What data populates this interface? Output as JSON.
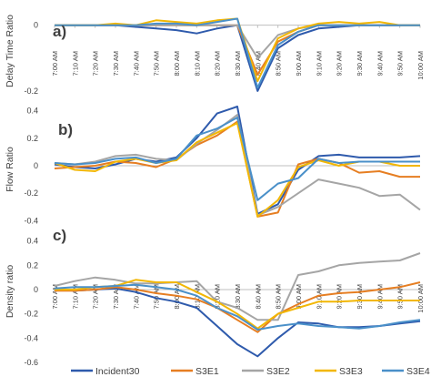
{
  "chart_data": [
    {
      "type": "line",
      "panel_label": "a)",
      "ylabel": "Delay Time Ratio",
      "ylim": [
        -0.25,
        0.06
      ],
      "yticks": [
        {
          "v": 0,
          "t": "0"
        },
        {
          "v": -0.2,
          "t": "-0.2"
        }
      ],
      "x": [
        "7:00 AM",
        "7:10 AM",
        "7:20 AM",
        "7:30 AM",
        "7:40 AM",
        "7:50 AM",
        "8:00 AM",
        "8:10 AM",
        "8:20 AM",
        "8:30 AM",
        "8:40 AM",
        "8:50 AM",
        "9:00 AM",
        "9:10 AM",
        "9:20 AM",
        "9:30 AM",
        "9:40 AM",
        "9:50 AM",
        "10:00 AM"
      ],
      "xtick_labels": [
        "7:00 AM",
        "7:10 AM",
        "7:20 AM",
        "7:30 AM",
        "7:40 AM",
        "7:50 AM",
        "8:00 AM",
        "8:10 AM",
        "8:20 AM",
        "8:30 AM",
        "8:40 AM",
        "8:50 AM",
        "9:00 AM",
        "9:10 AM",
        "9:20 AM",
        "9:30 AM",
        "9:40 AM",
        "9:50 AM",
        "10:00 AM"
      ],
      "series": [
        {
          "name": "Incident30",
          "values": [
            0,
            0,
            0,
            0,
            -0.005,
            -0.01,
            -0.015,
            -0.025,
            -0.01,
            0,
            -0.2,
            -0.07,
            -0.03,
            -0.01,
            -0.005,
            0,
            0,
            0,
            0
          ]
        },
        {
          "name": "S3E1",
          "values": [
            0,
            0,
            0,
            0,
            0,
            0,
            0,
            0,
            0,
            0,
            -0.15,
            -0.05,
            -0.02,
            0,
            0,
            0,
            0,
            0,
            0
          ]
        },
        {
          "name": "S3E2",
          "values": [
            0,
            0,
            0,
            0,
            0,
            0,
            0,
            0,
            0,
            0,
            -0.1,
            -0.03,
            -0.01,
            0,
            0,
            0,
            0,
            0,
            0
          ]
        },
        {
          "name": "S3E3",
          "values": [
            0,
            0,
            0,
            0.005,
            0,
            0.015,
            0.01,
            0.005,
            0.015,
            0.02,
            -0.17,
            -0.04,
            -0.01,
            0.005,
            0.01,
            0.005,
            0.01,
            0,
            0
          ]
        },
        {
          "name": "S3E4",
          "values": [
            0,
            0,
            0,
            0,
            0,
            0.005,
            0.005,
            0,
            0.01,
            0.02,
            -0.19,
            -0.06,
            -0.02,
            0,
            0,
            0,
            0,
            0,
            0
          ]
        }
      ]
    },
    {
      "type": "line",
      "panel_label": "b)",
      "ylabel": "Flow Ratio",
      "ylim": [
        -0.45,
        0.45
      ],
      "yticks": [
        {
          "v": 0.4,
          "t": "0.4"
        },
        {
          "v": 0.2,
          "t": "0.2"
        },
        {
          "v": 0,
          "t": "0"
        },
        {
          "v": -0.2,
          "t": "-0.2"
        },
        {
          "v": -0.4,
          "t": "-0.4"
        }
      ],
      "x": [
        "7:00 AM",
        "7:10 AM",
        "7:20 AM",
        "7:30 AM",
        "7:40 AM",
        "7:50 AM",
        "8:00 AM",
        "8:10 AM",
        "8:20 AM",
        "8:30 AM",
        "8:40 AM",
        "8:50 AM",
        "9:00 AM",
        "9:10 AM",
        "9:20 AM",
        "9:30 AM",
        "9:40 AM",
        "9:50 AM",
        "10:00 AM"
      ],
      "series": [
        {
          "name": "Incident30",
          "values": [
            0.01,
            -0.01,
            -0.02,
            0.01,
            0.05,
            0.03,
            0.06,
            0.2,
            0.38,
            0.43,
            -0.35,
            -0.28,
            -0.03,
            0.07,
            0.08,
            0.06,
            0.06,
            0.06,
            0.07
          ]
        },
        {
          "name": "S3E1",
          "values": [
            -0.02,
            -0.01,
            0.0,
            0.03,
            0.02,
            -0.01,
            0.05,
            0.15,
            0.22,
            0.32,
            -0.37,
            -0.34,
            0.01,
            0.05,
            0.02,
            -0.05,
            -0.04,
            -0.08,
            -0.08
          ]
        },
        {
          "name": "S3E2",
          "values": [
            0.02,
            0.01,
            0.03,
            0.07,
            0.08,
            0.05,
            0.04,
            0.16,
            0.26,
            0.37,
            -0.36,
            -0.3,
            -0.2,
            -0.1,
            -0.13,
            -0.16,
            -0.22,
            -0.21,
            -0.32
          ]
        },
        {
          "name": "S3E3",
          "values": [
            0.02,
            -0.03,
            -0.04,
            0.03,
            0.05,
            0.02,
            0.04,
            0.17,
            0.24,
            0.31,
            -0.37,
            -0.25,
            -0.01,
            0.04,
            0.0,
            0.03,
            0.03,
            0.0,
            0.0
          ]
        },
        {
          "name": "S3E4",
          "values": [
            0.02,
            0.01,
            0.02,
            0.05,
            0.06,
            0.02,
            0.05,
            0.22,
            0.27,
            0.35,
            -0.25,
            -0.13,
            -0.09,
            0.05,
            0.02,
            0.03,
            0.03,
            0.03,
            0.03
          ]
        }
      ]
    },
    {
      "type": "line",
      "panel_label": "c)",
      "ylabel": "Density ratio",
      "ylim": [
        -0.6,
        0.45
      ],
      "yticks": [
        {
          "v": 0.4,
          "t": "0.4"
        },
        {
          "v": 0.2,
          "t": "0.2"
        },
        {
          "v": 0,
          "t": "0"
        },
        {
          "v": -0.2,
          "t": "-0.2"
        },
        {
          "v": -0.4,
          "t": "-0.4"
        },
        {
          "v": -0.6,
          "t": "-0.6"
        }
      ],
      "x": [
        "7:00 AM",
        "7:10 AM",
        "7:20 AM",
        "7:30 AM",
        "7:40 AM",
        "7:50 AM",
        "8:00 AM",
        "8:10 AM",
        "8:20 AM",
        "8:30 AM",
        "8:40 AM",
        "8:50 AM",
        "9:00 AM",
        "9:10 AM",
        "9:20 AM",
        "9:30 AM",
        "9:40 AM",
        "9:50 AM",
        "10:00 AM"
      ],
      "xtick_labels": [
        "7:00 AM",
        "7:10 AM",
        "7:20 AM",
        "7:30 AM",
        "7:40 AM",
        "7:50 AM",
        "8:00 AM",
        "8:10 AM",
        "8:20 AM",
        "8:30 AM",
        "8:40 AM",
        "8:50 AM",
        "9:00 AM",
        "9:10 AM",
        "9:20 AM",
        "9:30 AM",
        "9:40 AM",
        "9:50 AM",
        "10:00 AM"
      ],
      "series": [
        {
          "name": "Incident30",
          "values": [
            0,
            -0.01,
            0,
            0.01,
            -0.02,
            -0.07,
            -0.1,
            -0.15,
            -0.3,
            -0.45,
            -0.55,
            -0.4,
            -0.27,
            -0.28,
            -0.31,
            -0.31,
            -0.3,
            -0.28,
            -0.26
          ]
        },
        {
          "name": "S3E1",
          "values": [
            -0.01,
            -0.01,
            0,
            0.02,
            0,
            -0.03,
            -0.05,
            -0.08,
            -0.15,
            -0.25,
            -0.35,
            -0.2,
            -0.12,
            -0.05,
            -0.03,
            -0.02,
            0.0,
            0.02,
            0.06
          ]
        },
        {
          "name": "S3E2",
          "values": [
            0.03,
            0.07,
            0.1,
            0.08,
            0.05,
            0.05,
            0.06,
            0.07,
            -0.1,
            -0.15,
            -0.25,
            -0.25,
            0.12,
            0.15,
            0.2,
            0.22,
            0.23,
            0.24,
            0.3
          ]
        },
        {
          "name": "S3E3",
          "values": [
            0,
            0,
            0.02,
            0.03,
            0.08,
            0.06,
            0.06,
            -0.02,
            -0.1,
            -0.2,
            -0.32,
            -0.2,
            -0.15,
            -0.1,
            -0.1,
            -0.09,
            -0.09,
            -0.09,
            -0.09
          ]
        },
        {
          "name": "S3E4",
          "values": [
            0.01,
            0.02,
            0.02,
            0.03,
            0.04,
            0.02,
            0.0,
            -0.05,
            -0.15,
            -0.22,
            -0.33,
            -0.3,
            -0.28,
            -0.3,
            -0.31,
            -0.32,
            -0.3,
            -0.27,
            -0.25
          ]
        }
      ]
    }
  ],
  "legend": [
    {
      "name": "Incident30",
      "color": "#2E5AAC"
    },
    {
      "name": "S3E1",
      "color": "#E67E22"
    },
    {
      "name": "S3E2",
      "color": "#A5A5A5"
    },
    {
      "name": "S3E3",
      "color": "#F2B705"
    },
    {
      "name": "S3E4",
      "color": "#4A90C9"
    }
  ]
}
